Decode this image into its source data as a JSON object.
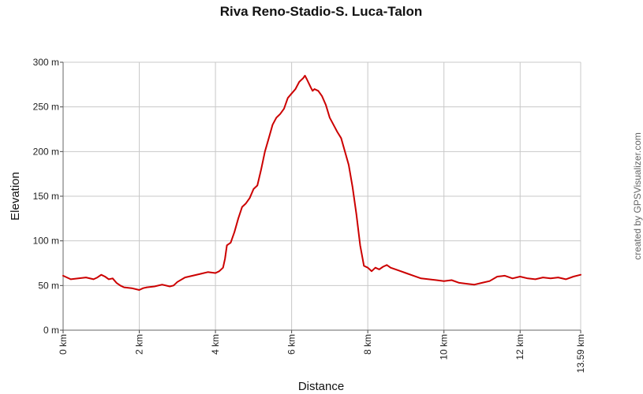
{
  "chart_data": {
    "type": "line",
    "title": "Riva Reno-Stadio-S. Luca-Talon",
    "xlabel": "Distance",
    "ylabel": "Elevation",
    "credit": "created by GPSVisualizer.com",
    "xlim": [
      0,
      13.59
    ],
    "ylim": [
      0,
      300
    ],
    "grid": true,
    "line_color": "#cc0000",
    "x_ticks": [
      {
        "value": 0,
        "label": "0 km"
      },
      {
        "value": 2,
        "label": "2 km"
      },
      {
        "value": 4,
        "label": "4 km"
      },
      {
        "value": 6,
        "label": "6 km"
      },
      {
        "value": 8,
        "label": "8 km"
      },
      {
        "value": 10,
        "label": "10 km"
      },
      {
        "value": 12,
        "label": "12 km"
      },
      {
        "value": 13.59,
        "label": "13.59 km"
      }
    ],
    "y_ticks": [
      {
        "value": 0,
        "label": "0 m"
      },
      {
        "value": 50,
        "label": "50 m"
      },
      {
        "value": 100,
        "label": "100 m"
      },
      {
        "value": 150,
        "label": "150 m"
      },
      {
        "value": 200,
        "label": "200 m"
      },
      {
        "value": 250,
        "label": "250 m"
      },
      {
        "value": 300,
        "label": "300 m"
      }
    ],
    "series": [
      {
        "x": [
          0,
          0.1,
          0.2,
          0.4,
          0.6,
          0.8,
          0.9,
          1.0,
          1.1,
          1.2,
          1.3,
          1.4,
          1.5,
          1.6,
          1.8,
          2.0,
          2.1,
          2.2,
          2.4,
          2.6,
          2.8,
          2.9,
          3.0,
          3.2,
          3.4,
          3.6,
          3.8,
          4.0,
          4.1,
          4.2,
          4.25,
          4.3,
          4.4,
          4.5,
          4.6,
          4.7,
          4.8,
          4.9,
          5.0,
          5.1,
          5.2,
          5.25,
          5.3,
          5.4,
          5.5,
          5.6,
          5.65,
          5.7,
          5.8,
          5.9,
          6.0,
          6.1,
          6.2,
          6.3,
          6.35,
          6.4,
          6.5,
          6.55,
          6.6,
          6.7,
          6.8,
          6.9,
          7.0,
          7.1,
          7.2,
          7.3,
          7.4,
          7.5,
          7.6,
          7.7,
          7.8,
          7.9,
          8.0,
          8.05,
          8.1,
          8.2,
          8.3,
          8.4,
          8.5,
          8.6,
          8.8,
          9.0,
          9.2,
          9.4,
          9.6,
          9.8,
          10.0,
          10.2,
          10.4,
          10.6,
          10.8,
          11.0,
          11.2,
          11.4,
          11.6,
          11.8,
          12.0,
          12.2,
          12.4,
          12.6,
          12.8,
          13.0,
          13.2,
          13.4,
          13.59
        ],
        "y": [
          61,
          59,
          57,
          58,
          59,
          57,
          59,
          62,
          60,
          57,
          58,
          53,
          50,
          48,
          47,
          45,
          47,
          48,
          49,
          51,
          49,
          50,
          54,
          59,
          61,
          63,
          65,
          64,
          66,
          70,
          80,
          95,
          98,
          110,
          125,
          138,
          142,
          148,
          158,
          162,
          180,
          190,
          200,
          215,
          230,
          238,
          240,
          242,
          248,
          260,
          265,
          270,
          278,
          282,
          285,
          281,
          272,
          268,
          270,
          268,
          262,
          252,
          238,
          230,
          222,
          215,
          200,
          185,
          160,
          130,
          95,
          72,
          70,
          68,
          66,
          70,
          68,
          71,
          73,
          70,
          67,
          64,
          61,
          58,
          57,
          56,
          55,
          56,
          53,
          52,
          51,
          53,
          55,
          60,
          61,
          58,
          60,
          58,
          57,
          59,
          58,
          59,
          57,
          60,
          62
        ]
      }
    ]
  }
}
